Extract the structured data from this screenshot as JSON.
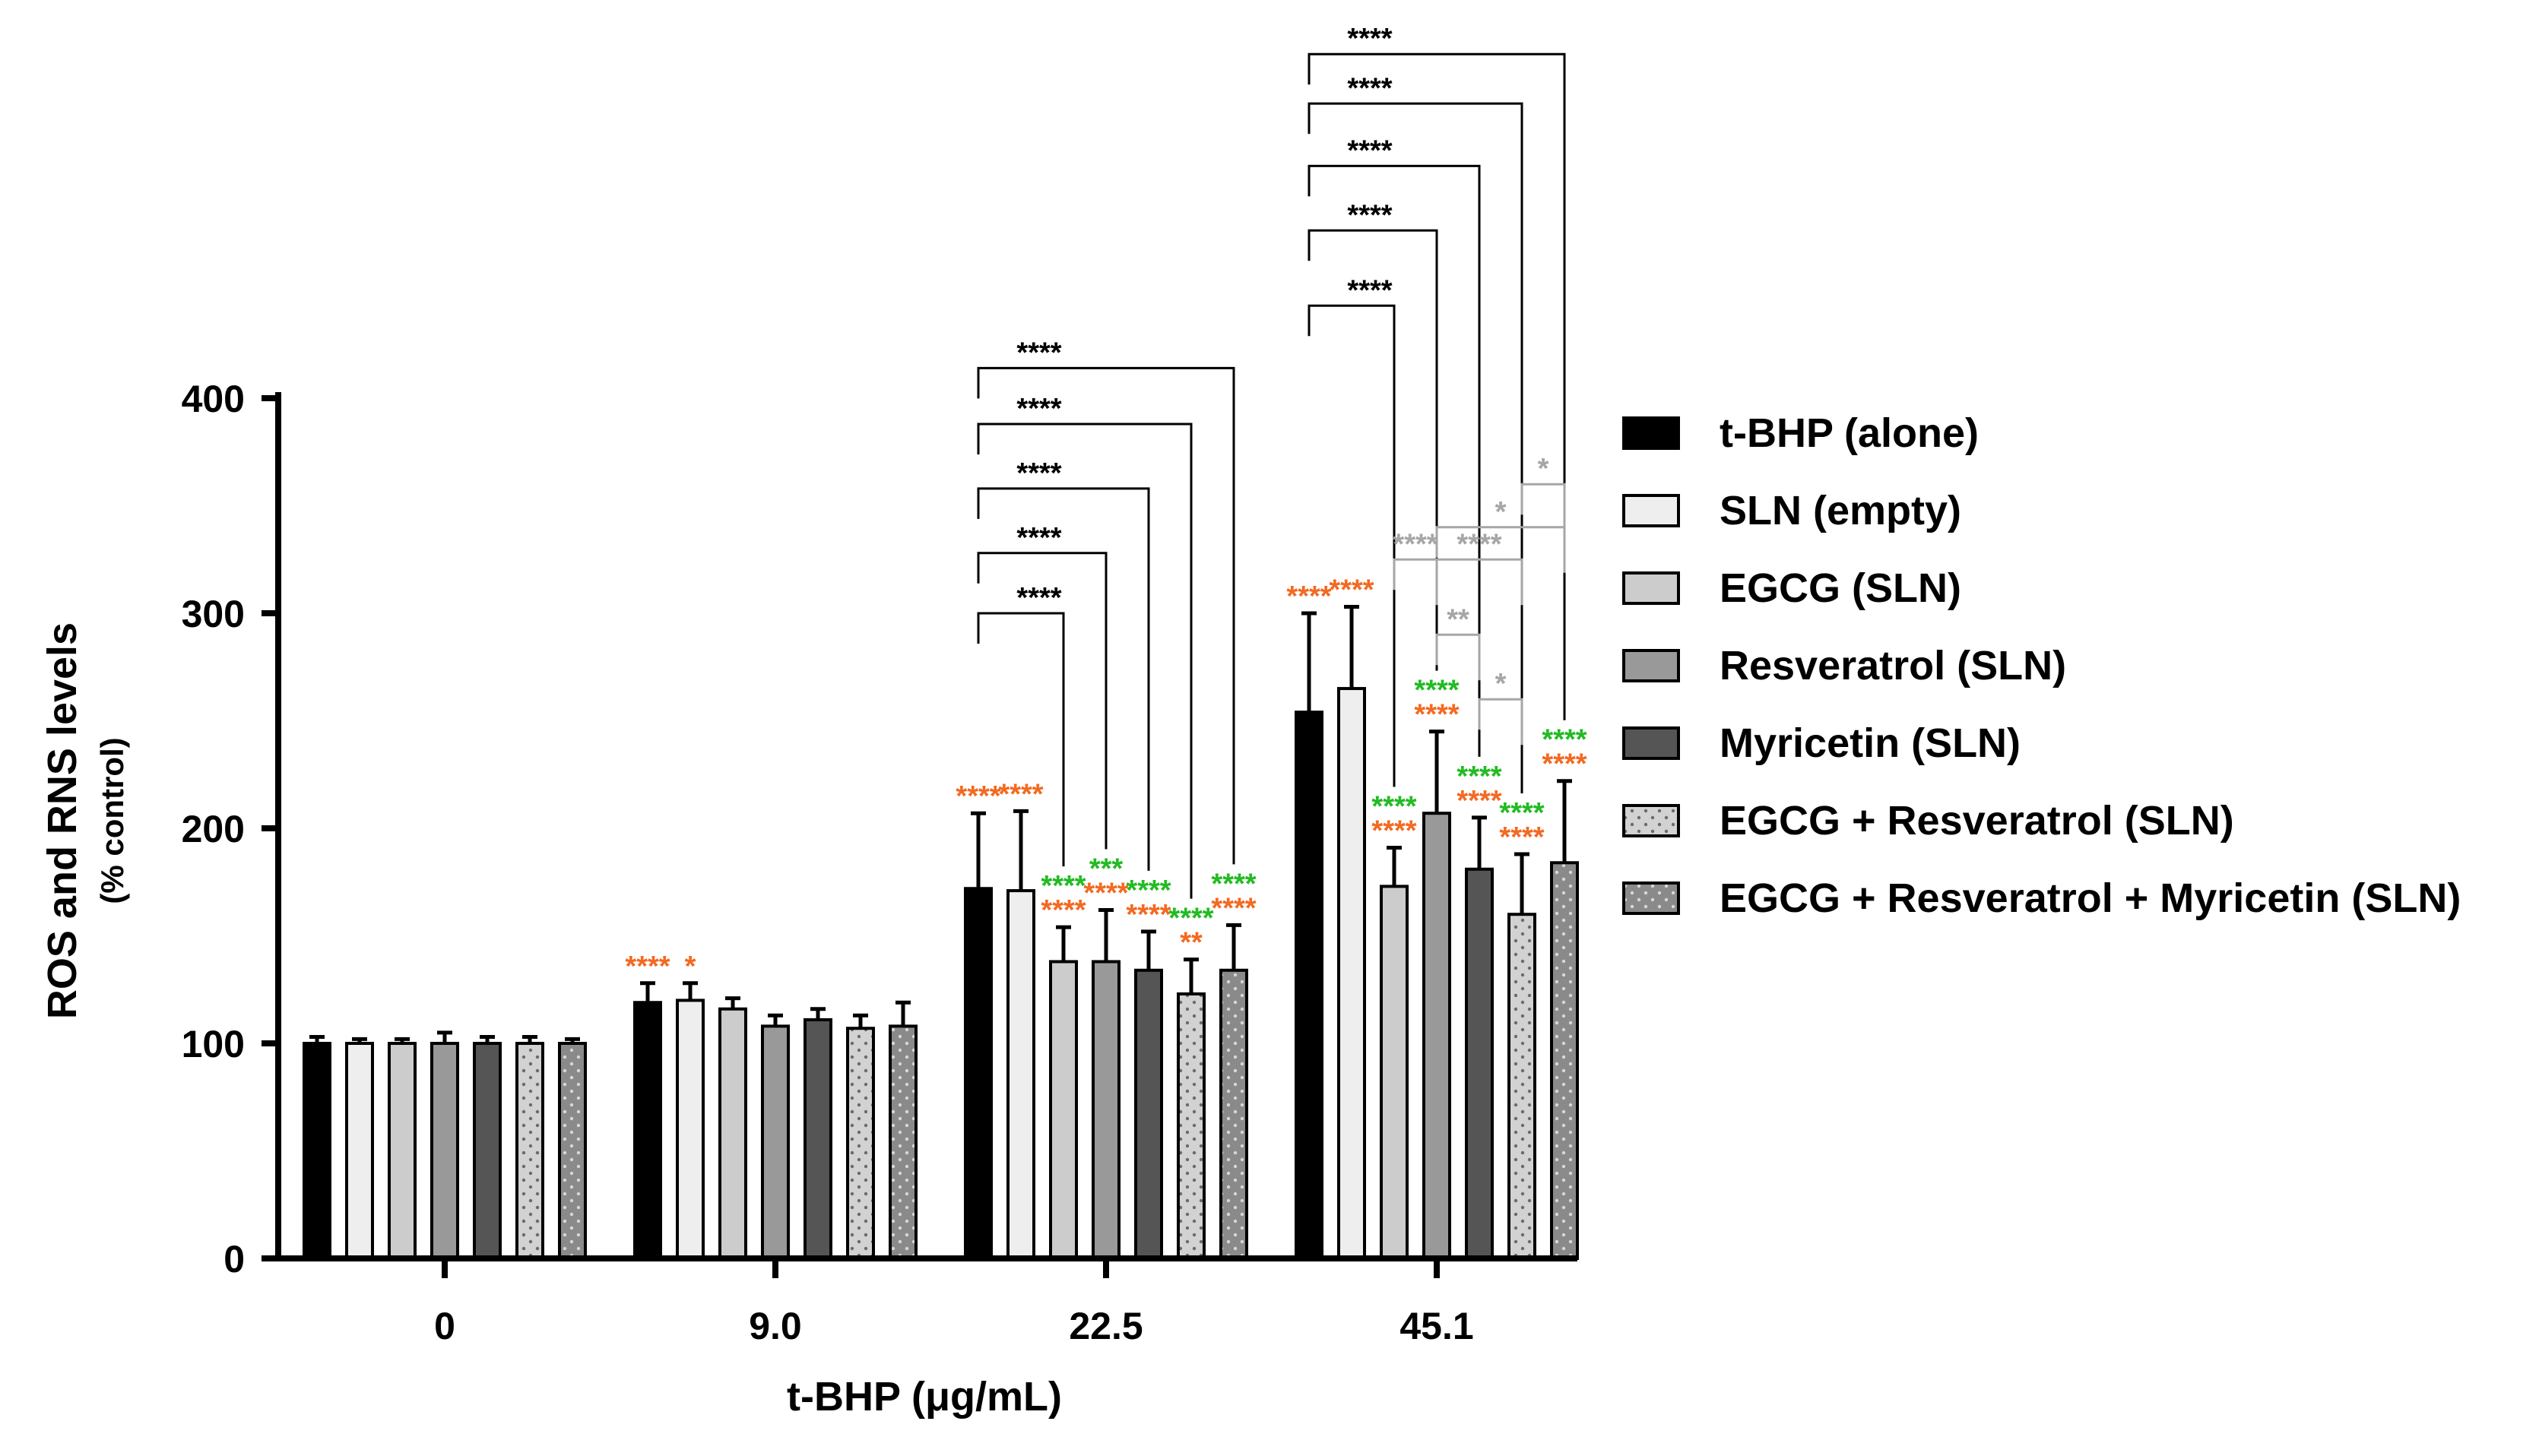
{
  "chart_data": {
    "type": "bar",
    "title": "",
    "xlabel": "t-BHP (μg/mL)",
    "ylabel": "ROS and RNS levels",
    "ylabel_sub": "(% control)",
    "ylim": [
      0,
      400
    ],
    "yticks": [
      "0",
      "100",
      "200",
      "300",
      "400"
    ],
    "grid": false,
    "legend_position": "right",
    "categories": [
      "0",
      "9.0",
      "22.5",
      "45.1"
    ],
    "series": [
      {
        "name": "t-BHP (alone)",
        "fill": "#000000",
        "pattern": "solid",
        "values": [
          100,
          119,
          172,
          254
        ],
        "errors": [
          3,
          9,
          35,
          46
        ]
      },
      {
        "name": "SLN (empty)",
        "fill": "#eeeeee",
        "pattern": "solid",
        "values": [
          100,
          120,
          171,
          265
        ],
        "errors": [
          2,
          8,
          37,
          38
        ]
      },
      {
        "name": "EGCG (SLN)",
        "fill": "#cccccc",
        "pattern": "solid",
        "values": [
          100,
          116,
          138,
          173
        ],
        "errors": [
          2,
          5,
          16,
          18
        ]
      },
      {
        "name": "Resveratrol (SLN)",
        "fill": "#999999",
        "pattern": "solid",
        "values": [
          100,
          108,
          138,
          207
        ],
        "errors": [
          5,
          5,
          24,
          38
        ]
      },
      {
        "name": "Myricetin (SLN)",
        "fill": "#555555",
        "pattern": "solid",
        "values": [
          100,
          111,
          134,
          181
        ],
        "errors": [
          3,
          5,
          18,
          24
        ]
      },
      {
        "name": "EGCG + Resveratrol (SLN)",
        "fill": "#cfcfcf",
        "pattern": "dots",
        "values": [
          100,
          107,
          123,
          160
        ],
        "errors": [
          3,
          6,
          16,
          28
        ]
      },
      {
        "name": "EGCG + Resveratrol + Myricetin (SLN)",
        "fill": "#888888",
        "pattern": "dots",
        "values": [
          100,
          108,
          134,
          184
        ],
        "errors": [
          2,
          11,
          21,
          38
        ]
      }
    ],
    "colors": {
      "black": "#000000",
      "orange": "#f26a22",
      "green": "#22bb22",
      "gray": "#a6a6a6"
    },
    "bar_annotations": [
      {
        "cat": 1,
        "s": 0,
        "lines": [
          {
            "text": "****",
            "color": "orange"
          }
        ]
      },
      {
        "cat": 1,
        "s": 1,
        "lines": [
          {
            "text": "*",
            "color": "orange"
          }
        ]
      },
      {
        "cat": 2,
        "s": 0,
        "lines": [
          {
            "text": "****",
            "color": "orange"
          }
        ]
      },
      {
        "cat": 2,
        "s": 1,
        "lines": [
          {
            "text": "****",
            "color": "orange"
          }
        ]
      },
      {
        "cat": 2,
        "s": 2,
        "lines": [
          {
            "text": "****",
            "color": "green"
          },
          {
            "text": "****",
            "color": "orange"
          }
        ]
      },
      {
        "cat": 2,
        "s": 3,
        "lines": [
          {
            "text": "***",
            "color": "green"
          },
          {
            "text": "****",
            "color": "orange"
          }
        ]
      },
      {
        "cat": 2,
        "s": 4,
        "lines": [
          {
            "text": "****",
            "color": "green"
          },
          {
            "text": "****",
            "color": "orange"
          }
        ]
      },
      {
        "cat": 2,
        "s": 5,
        "lines": [
          {
            "text": "****",
            "color": "green"
          },
          {
            "text": "**",
            "color": "orange"
          }
        ]
      },
      {
        "cat": 2,
        "s": 6,
        "lines": [
          {
            "text": "****",
            "color": "green"
          },
          {
            "text": "****",
            "color": "orange"
          }
        ]
      },
      {
        "cat": 3,
        "s": 0,
        "lines": [
          {
            "text": "****",
            "color": "orange"
          }
        ]
      },
      {
        "cat": 3,
        "s": 1,
        "lines": [
          {
            "text": "****",
            "color": "orange"
          }
        ]
      },
      {
        "cat": 3,
        "s": 2,
        "lines": [
          {
            "text": "****",
            "color": "green"
          },
          {
            "text": "****",
            "color": "orange"
          }
        ]
      },
      {
        "cat": 3,
        "s": 3,
        "lines": [
          {
            "text": "****",
            "color": "green"
          },
          {
            "text": "****",
            "color": "orange"
          }
        ]
      },
      {
        "cat": 3,
        "s": 4,
        "lines": [
          {
            "text": "****",
            "color": "green"
          },
          {
            "text": "****",
            "color": "orange"
          }
        ]
      },
      {
        "cat": 3,
        "s": 5,
        "lines": [
          {
            "text": "****",
            "color": "green"
          },
          {
            "text": "****",
            "color": "orange"
          }
        ]
      },
      {
        "cat": 3,
        "s": 6,
        "lines": [
          {
            "text": "****",
            "color": "green"
          },
          {
            "text": "****",
            "color": "orange"
          }
        ]
      }
    ],
    "comparisons": [
      {
        "cat": 2,
        "from": 0,
        "to": 2,
        "level": 300,
        "label": "****",
        "color": "black"
      },
      {
        "cat": 2,
        "from": 0,
        "to": 3,
        "level": 328,
        "label": "****",
        "color": "black"
      },
      {
        "cat": 2,
        "from": 0,
        "to": 4,
        "level": 358,
        "label": "****",
        "color": "black"
      },
      {
        "cat": 2,
        "from": 0,
        "to": 5,
        "level": 388,
        "label": "****",
        "color": "black"
      },
      {
        "cat": 2,
        "from": 0,
        "to": 6,
        "level": 414,
        "label": "****",
        "color": "black"
      },
      {
        "cat": 3,
        "from": 0,
        "to": 2,
        "level": 443,
        "label": "****",
        "color": "black"
      },
      {
        "cat": 3,
        "from": 0,
        "to": 3,
        "level": 478,
        "label": "****",
        "color": "black"
      },
      {
        "cat": 3,
        "from": 0,
        "to": 4,
        "level": 508,
        "label": "****",
        "color": "black"
      },
      {
        "cat": 3,
        "from": 0,
        "to": 5,
        "level": 537,
        "label": "****",
        "color": "black"
      },
      {
        "cat": 3,
        "from": 0,
        "to": 6,
        "level": 560,
        "label": "****",
        "color": "black"
      },
      {
        "cat": 3,
        "from": 2,
        "to": 3,
        "level": 325,
        "label": "****",
        "color": "gray"
      },
      {
        "cat": 3,
        "from": 3,
        "to": 5,
        "level": 325,
        "label": "****",
        "color": "gray"
      },
      {
        "cat": 3,
        "from": 3,
        "to": 6,
        "level": 340,
        "label": "*",
        "color": "gray"
      },
      {
        "cat": 3,
        "from": 5,
        "to": 6,
        "level": 360,
        "label": "*",
        "color": "gray"
      },
      {
        "cat": 3,
        "from": 3,
        "to": 4,
        "level": 290,
        "label": "**",
        "color": "gray"
      },
      {
        "cat": 3,
        "from": 4,
        "to": 5,
        "level": 260,
        "label": "*",
        "color": "gray"
      }
    ]
  }
}
